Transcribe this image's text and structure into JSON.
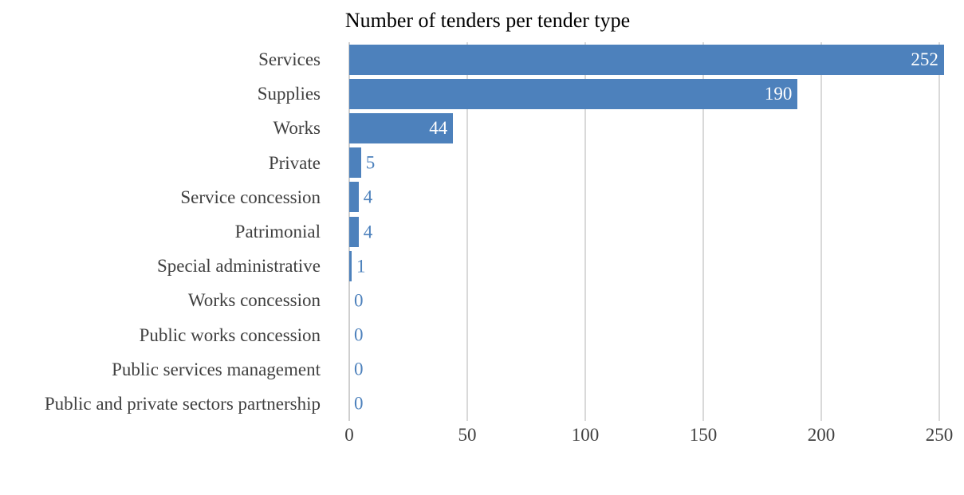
{
  "chart_data": {
    "type": "bar",
    "orientation": "horizontal",
    "title": "Number of tenders per tender type",
    "categories": [
      "Services",
      "Supplies",
      "Works",
      "Private",
      "Service concession",
      "Patrimonial",
      "Special administrative",
      "Works concession",
      "Public works concession",
      "Public services management",
      "Public and private sectors partnership"
    ],
    "values": [
      252,
      190,
      44,
      5,
      4,
      4,
      1,
      0,
      0,
      0,
      0
    ],
    "x_ticks": [
      "0",
      "50",
      "100",
      "150",
      "200",
      "250"
    ],
    "xlim": [
      0,
      250
    ],
    "grid": "vertical",
    "legend_position": "none",
    "data_labels": true,
    "colors": {
      "bar": "#4d81bc",
      "value_label_inside": "#ffffff",
      "value_label_outside": "#4d81bc",
      "axis_text": "#404040",
      "gridline": "#d9d9d9",
      "axis_line": "#cfcfcf",
      "title_text": "#000000"
    }
  }
}
